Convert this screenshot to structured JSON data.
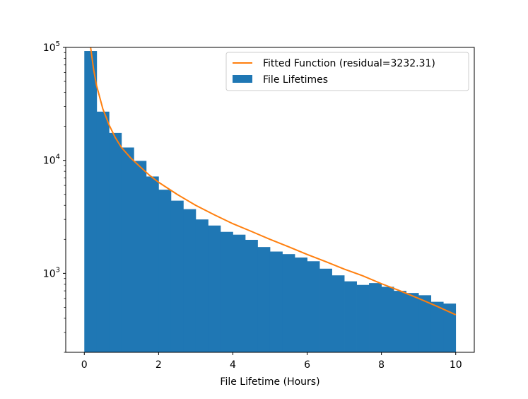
{
  "chart_data": {
    "type": "bar",
    "title": "",
    "xlabel": "File Lifetime (Hours)",
    "ylabel": "",
    "y_scale": "log",
    "xlim": [
      -0.5,
      10.5
    ],
    "ylim": [
      200,
      100000
    ],
    "x_ticks": [
      0,
      2,
      4,
      6,
      8,
      10
    ],
    "y_ticks": [
      {
        "value": 1000,
        "base": "10",
        "exp": "3"
      },
      {
        "value": 10000,
        "base": "10",
        "exp": "4"
      },
      {
        "value": 100000,
        "base": "10",
        "exp": "5"
      }
    ],
    "bin_width": 0.3333,
    "bin_edges_start": 0,
    "series": [
      {
        "name": "File Lifetimes",
        "kind": "histogram",
        "color": "#1f77b4",
        "values": [
          93000,
          27000,
          17500,
          13000,
          9900,
          7200,
          5500,
          4400,
          3700,
          3000,
          2650,
          2330,
          2200,
          1980,
          1710,
          1560,
          1480,
          1380,
          1280,
          1100,
          960,
          850,
          790,
          820,
          760,
          700,
          670,
          640,
          560,
          540
        ]
      },
      {
        "name": "Fitted Function (residual=3232.31)",
        "kind": "line",
        "color": "#ff7f0e",
        "x": [
          0.17,
          0.25,
          0.33,
          0.5,
          0.67,
          0.83,
          1,
          1.25,
          1.5,
          1.75,
          2,
          2.5,
          3,
          3.5,
          4,
          4.5,
          5,
          5.5,
          6,
          6.5,
          7,
          7.5,
          8,
          8.5,
          9,
          9.5,
          10
        ],
        "y": [
          100000,
          64000,
          46000,
          28500,
          20500,
          16000,
          13000,
          10500,
          8800,
          7400,
          6400,
          5000,
          4000,
          3300,
          2750,
          2350,
          2000,
          1720,
          1470,
          1270,
          1090,
          950,
          810,
          700,
          600,
          510,
          430
        ]
      }
    ],
    "legend": {
      "placement": "top-right"
    },
    "grid": false
  }
}
